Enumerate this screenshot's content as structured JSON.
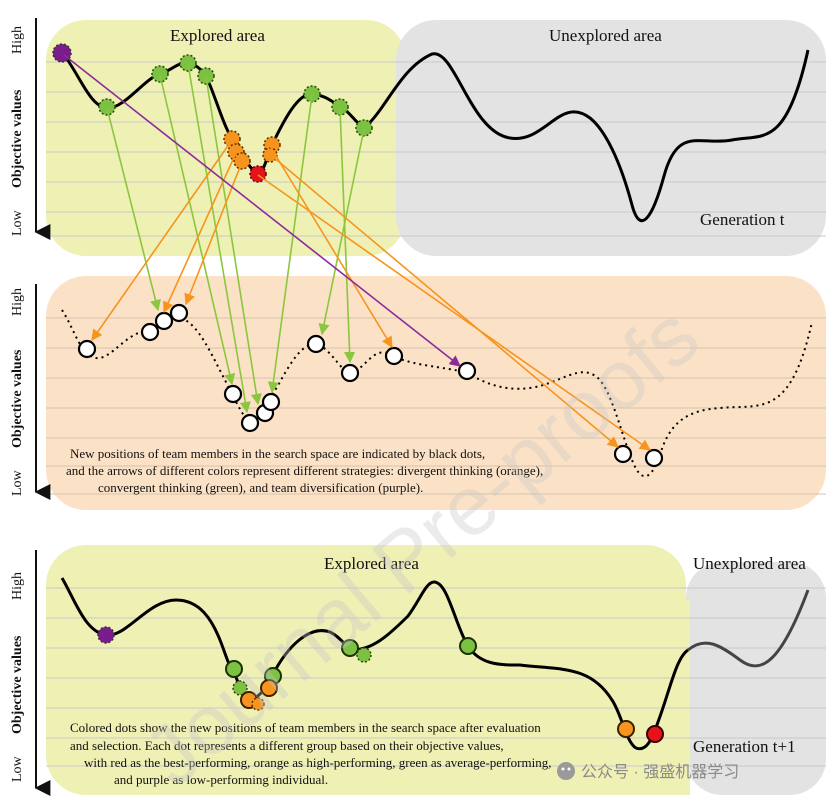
{
  "panel1": {
    "explored_label": "Explored area",
    "unexplored_label": "Unexplored area",
    "generation_label": "Generation  t",
    "ylabel": "Objective values",
    "high": "High",
    "low": "Low"
  },
  "panel2": {
    "ylabel": "Objective values",
    "high": "High",
    "low": "Low",
    "caption": [
      "New positions of team members in the search space are indicated by black dots,",
      "and the arrows of different colors represent different strategies: divergent thinking (orange),",
      "convergent thinking (green), and team diversification (purple)."
    ]
  },
  "panel3": {
    "explored_label": "Explored area",
    "unexplored_label": "Unexplored area",
    "generation_label": "Generation t+1",
    "ylabel": "Objective values",
    "high": "High",
    "low": "Low",
    "caption": [
      "Colored dots show the new positions of team members in the search space after evaluation",
      "and selection. Each dot represents a different group based on their objective values,",
      "with red as the best-performing, orange as high-performing, green as average-performing,",
      "and purple as low-performing individual."
    ]
  },
  "watermark_text": "Journal Pre-proofs",
  "wechat_label": "公众号 · 强盛机器学习",
  "colors": {
    "explored": "#eef0b4",
    "unexplored": "#e3e3e3",
    "middle_panel": "#fbe2c6",
    "red": "#e8131a",
    "orange": "#f7941d",
    "green": "#7cc142",
    "purple": "#7b1c8c",
    "arrow_green": "#8cc63f",
    "arrow_orange": "#f7941d",
    "arrow_purple": "#8b2a9b"
  }
}
